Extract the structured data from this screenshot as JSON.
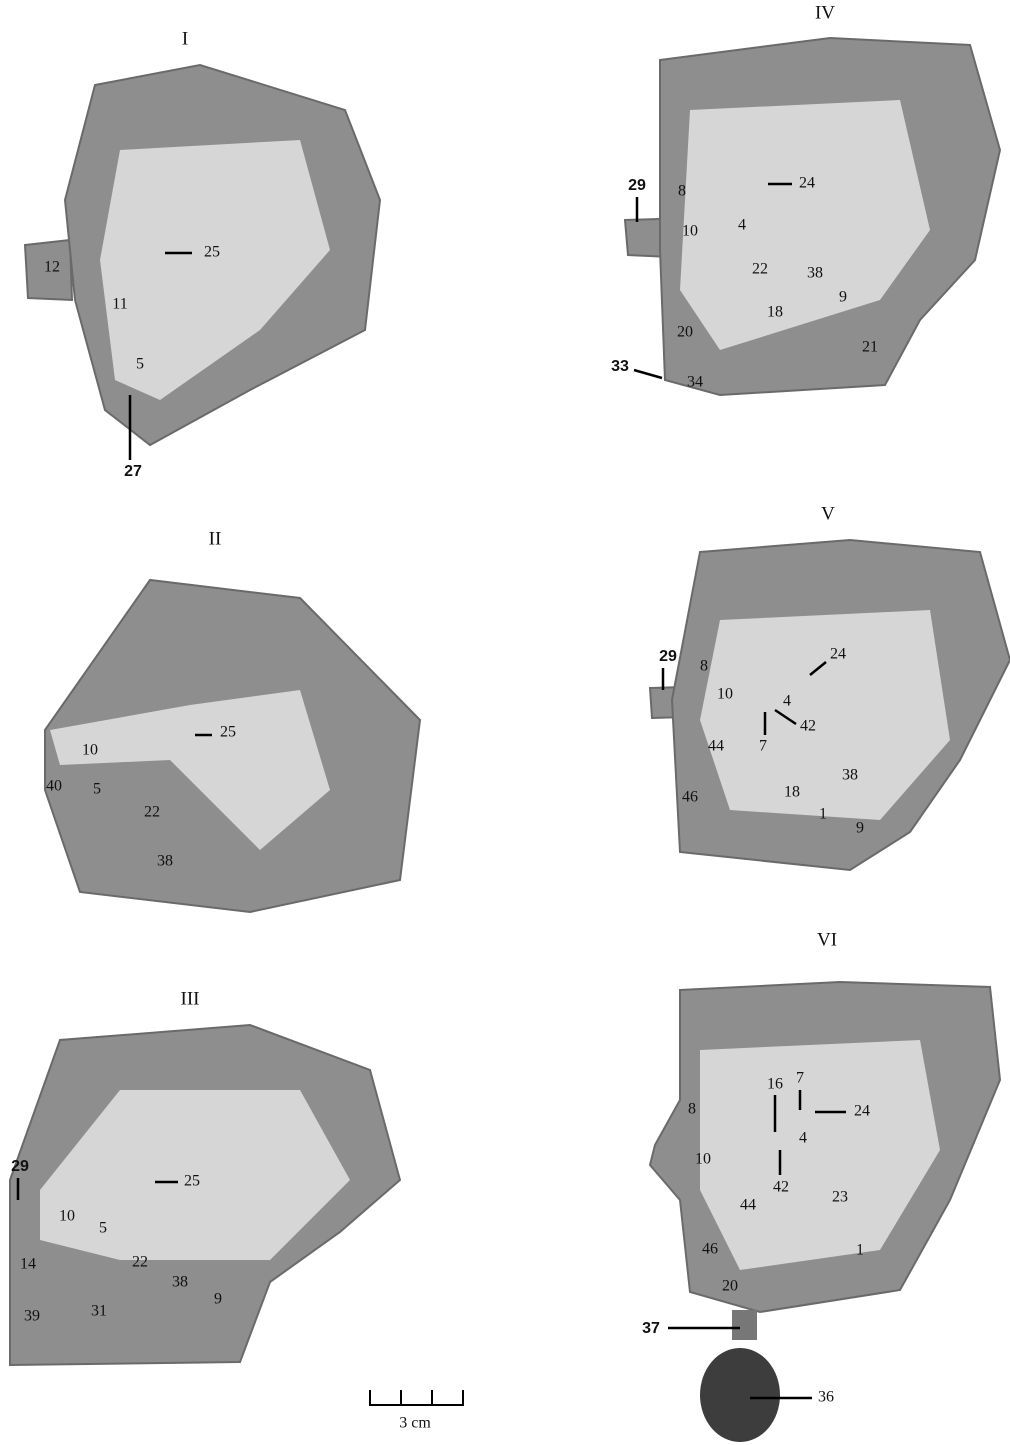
{
  "panels": [
    {
      "title": "I",
      "labels": [
        "12",
        "25",
        "11",
        "5",
        "27"
      ]
    },
    {
      "title": "IV",
      "labels": [
        "29",
        "8",
        "24",
        "10",
        "4",
        "22",
        "38",
        "9",
        "18",
        "20",
        "21",
        "33",
        "34"
      ]
    },
    {
      "title": "II",
      "labels": [
        "25",
        "10",
        "40",
        "5",
        "22",
        "38"
      ]
    },
    {
      "title": "V",
      "labels": [
        "29",
        "8",
        "24",
        "10",
        "4",
        "42",
        "7",
        "44",
        "38",
        "46",
        "18",
        "1",
        "9"
      ]
    },
    {
      "title": "III",
      "labels": [
        "29",
        "25",
        "10",
        "5",
        "14",
        "22",
        "38",
        "9",
        "39",
        "31"
      ]
    },
    {
      "title": "VI",
      "labels": [
        "16",
        "7",
        "24",
        "8",
        "4",
        "10",
        "42",
        "44",
        "23",
        "1",
        "46",
        "20",
        "37",
        "36"
      ]
    }
  ],
  "scale_bar": {
    "label": "3 cm"
  }
}
